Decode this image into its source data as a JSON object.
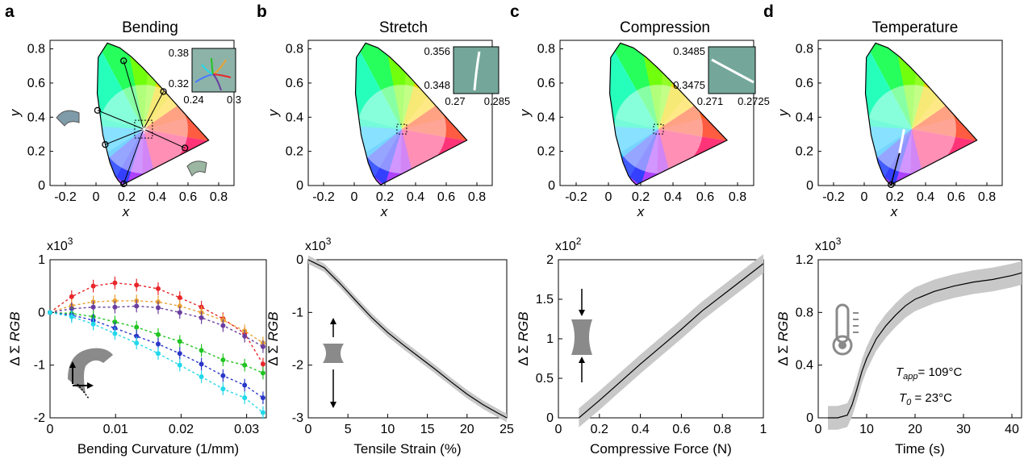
{
  "panels": [
    {
      "label": "a",
      "title": "Bending",
      "bottom_xlabel": "Bending Curvature (1/mm)",
      "bottom_multiplier": "x10",
      "bottom_exp": "3"
    },
    {
      "label": "b",
      "title": "Stretch",
      "bottom_xlabel": "Tensile Strain (%)",
      "bottom_multiplier": "x10",
      "bottom_exp": "3"
    },
    {
      "label": "c",
      "title": "Compression",
      "bottom_xlabel": "Compressive Force (N)",
      "bottom_multiplier": "x10",
      "bottom_exp": "2"
    },
    {
      "label": "d",
      "title": "Temperature",
      "bottom_xlabel": "Time (s)",
      "bottom_multiplier": "x10",
      "bottom_exp": "3"
    }
  ],
  "cie": {
    "xlabel": "x",
    "ylabel": "y",
    "xticks": [
      "-0.2",
      "0",
      "0.2",
      "0.4",
      "0.6",
      "0.8"
    ],
    "yticks": [
      "0",
      "0.2",
      "0.4",
      "0.6",
      "0.8"
    ],
    "xlim": [
      -0.3,
      0.9
    ],
    "ylim": [
      0,
      0.85
    ]
  },
  "ylabel_prefix": "Δ Σ ",
  "ylabel_italic": "RGB",
  "insets": [
    {
      "xticks": [
        "0.24",
        "0.3"
      ],
      "yticks": [
        "0.38",
        "0.32"
      ]
    },
    {
      "xticks": [
        "0.27",
        "0.285"
      ],
      "yticks": [
        "0.356",
        "0.348"
      ]
    },
    {
      "xticks": [
        "0.271",
        "0.2725"
      ],
      "yticks": [
        "0.3485",
        "0.3475"
      ]
    }
  ],
  "temperature": {
    "t_app_sub": "app",
    "t_app_value": "= 109°C",
    "t0_sub": "0",
    "t0_value": " = 23°C"
  },
  "colors": {
    "red": "#e8262a",
    "orange": "#eaa232",
    "purple": "#6a3ea0",
    "green": "#22c422",
    "blue": "#2a37c8",
    "cyan": "#22d8ea",
    "band": "#c8c8c8",
    "device": "#8a8a8a",
    "inset_bg": "#74a79a"
  },
  "chart_data": [
    {
      "type": "scatter",
      "panel": "a-top",
      "x_axis": "x",
      "y_axis": "y",
      "white_point": [
        0.31,
        0.33
      ],
      "endpoints": [
        [
          0.18,
          0.73
        ],
        [
          0.44,
          0.55
        ],
        [
          0.58,
          0.22
        ],
        [
          0.18,
          0.01
        ],
        [
          0.06,
          0.24
        ],
        [
          0.01,
          0.44
        ]
      ]
    },
    {
      "type": "line",
      "panel": "a-bottom",
      "xlabel": "Bending Curvature (1/mm)",
      "xlim": [
        0,
        0.033
      ],
      "ylim": [
        -2,
        1
      ],
      "xticks": [
        "0",
        "0.01",
        "0.02",
        "0.03"
      ],
      "yticks": [
        "-2",
        "-1",
        "0",
        "1"
      ],
      "x": [
        0,
        0.0033,
        0.0066,
        0.0099,
        0.0132,
        0.0165,
        0.0198,
        0.0231,
        0.0264,
        0.0297,
        0.0325
      ],
      "series": [
        {
          "color": "red",
          "values": [
            0,
            0.3,
            0.5,
            0.56,
            0.52,
            0.45,
            0.28,
            0.1,
            -0.12,
            -0.4,
            -0.98
          ]
        },
        {
          "color": "orange",
          "values": [
            0,
            0.13,
            0.2,
            0.22,
            0.22,
            0.2,
            0.12,
            0.0,
            -0.15,
            -0.35,
            -0.58
          ]
        },
        {
          "color": "purple",
          "values": [
            0,
            0.07,
            0.1,
            0.1,
            0.12,
            0.09,
            0.0,
            -0.1,
            -0.25,
            -0.45,
            -0.65
          ]
        },
        {
          "color": "green",
          "values": [
            0,
            -0.02,
            -0.08,
            -0.18,
            -0.28,
            -0.42,
            -0.55,
            -0.72,
            -0.9,
            -1.0,
            -1.15
          ]
        },
        {
          "color": "blue",
          "values": [
            0,
            -0.05,
            -0.15,
            -0.3,
            -0.45,
            -0.6,
            -0.78,
            -0.98,
            -1.2,
            -1.38,
            -1.62
          ]
        },
        {
          "color": "cyan",
          "values": [
            0,
            -0.08,
            -0.22,
            -0.4,
            -0.58,
            -0.78,
            -1.0,
            -1.22,
            -1.45,
            -1.62,
            -1.9
          ]
        }
      ],
      "error": 0.12
    },
    {
      "type": "line",
      "panel": "b-bottom",
      "xlabel": "Tensile Strain (%)",
      "xlim": [
        0,
        25
      ],
      "ylim": [
        -3,
        0
      ],
      "xticks": [
        "0",
        "5",
        "10",
        "15",
        "20",
        "25"
      ],
      "yticks": [
        "-3",
        "-2",
        "-1",
        "0"
      ],
      "x": [
        0,
        2,
        4,
        6,
        8,
        10,
        12,
        14,
        16,
        18,
        20,
        22,
        24,
        25
      ],
      "values": [
        0,
        -0.15,
        -0.45,
        -0.78,
        -1.1,
        -1.38,
        -1.62,
        -1.85,
        -2.08,
        -2.32,
        -2.55,
        -2.75,
        -2.92,
        -3.0
      ],
      "band": 0.08
    },
    {
      "type": "line",
      "panel": "c-bottom",
      "xlabel": "Compressive Force (N)",
      "xlim": [
        0,
        1
      ],
      "ylim": [
        0,
        2
      ],
      "xticks": [
        "0",
        "0.2",
        "0.4",
        "0.6",
        "0.8",
        "1"
      ],
      "yticks": [
        "0",
        "0.5",
        "1",
        "1.5",
        "2"
      ],
      "x": [
        0.1,
        0.2,
        0.3,
        0.4,
        0.5,
        0.6,
        0.7,
        0.8,
        0.9,
        1.0
      ],
      "values": [
        0.0,
        0.22,
        0.45,
        0.68,
        0.9,
        1.12,
        1.35,
        1.55,
        1.75,
        1.95
      ],
      "band": 0.12
    },
    {
      "type": "line",
      "panel": "d-bottom",
      "xlabel": "Time (s)",
      "xlim": [
        0,
        42
      ],
      "ylim": [
        0,
        1.2
      ],
      "xticks": [
        "0",
        "10",
        "20",
        "30",
        "40"
      ],
      "yticks": [
        "0",
        "0.4",
        "0.8",
        "1.2"
      ],
      "x": [
        2,
        4,
        6,
        7,
        8,
        9,
        10,
        12,
        14,
        16,
        18,
        20,
        24,
        28,
        32,
        36,
        40,
        42
      ],
      "values": [
        0,
        0,
        0.02,
        0.1,
        0.22,
        0.35,
        0.45,
        0.6,
        0.7,
        0.78,
        0.85,
        0.9,
        0.96,
        1.0,
        1.03,
        1.05,
        1.08,
        1.1
      ],
      "band": 0.09
    }
  ]
}
